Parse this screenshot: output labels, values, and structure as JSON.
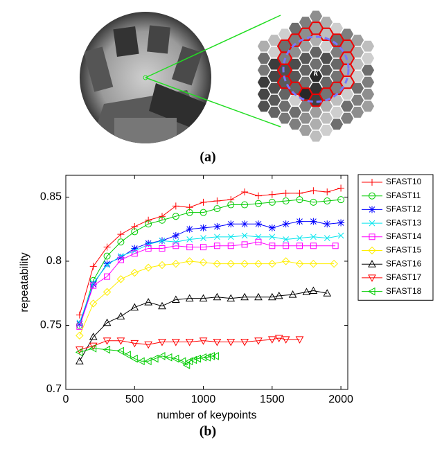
{
  "figure": {
    "label_a": "(a)",
    "label_b": "(b)",
    "hex_center_label": "k"
  },
  "chart_data": {
    "type": "line",
    "x_label": "number of keypoints",
    "y_label": "repeatability",
    "xlim": [
      0,
      2050
    ],
    "ylim": [
      0.7,
      0.867
    ],
    "xticks": [
      0,
      500,
      1000,
      1500,
      2000
    ],
    "yticks": [
      0.7,
      0.75,
      0.8,
      0.85
    ],
    "series": [
      {
        "name": "SFAST10",
        "color": "#ff0000",
        "marker": "+",
        "x": [
          100,
          200,
          300,
          400,
          500,
          600,
          700,
          800,
          900,
          1000,
          1100,
          1200,
          1300,
          1400,
          1500,
          1600,
          1700,
          1800,
          1900,
          2000
        ],
        "values": [
          0.758,
          0.796,
          0.811,
          0.821,
          0.827,
          0.832,
          0.835,
          0.843,
          0.842,
          0.846,
          0.847,
          0.848,
          0.854,
          0.851,
          0.852,
          0.853,
          0.853,
          0.855,
          0.854,
          0.857
        ]
      },
      {
        "name": "SFAST11",
        "color": "#00cc00",
        "marker": "o",
        "x": [
          100,
          200,
          300,
          400,
          500,
          600,
          700,
          800,
          900,
          1000,
          1100,
          1200,
          1300,
          1400,
          1500,
          1600,
          1700,
          1800,
          1900,
          2000
        ],
        "values": [
          0.75,
          0.785,
          0.804,
          0.815,
          0.823,
          0.829,
          0.832,
          0.835,
          0.838,
          0.838,
          0.841,
          0.844,
          0.844,
          0.845,
          0.846,
          0.847,
          0.848,
          0.846,
          0.847,
          0.848
        ]
      },
      {
        "name": "SFAST12",
        "color": "#0000ff",
        "marker": "*",
        "x": [
          100,
          200,
          300,
          400,
          500,
          600,
          700,
          800,
          900,
          1000,
          1100,
          1200,
          1300,
          1400,
          1500,
          1600,
          1700,
          1800,
          1900,
          2000
        ],
        "values": [
          0.751,
          0.782,
          0.798,
          0.803,
          0.81,
          0.814,
          0.816,
          0.82,
          0.825,
          0.826,
          0.827,
          0.829,
          0.829,
          0.829,
          0.826,
          0.829,
          0.831,
          0.831,
          0.829,
          0.83
        ]
      },
      {
        "name": "SFAST13",
        "color": "#00e5ee",
        "marker": "x",
        "x": [
          100,
          200,
          300,
          400,
          500,
          600,
          700,
          800,
          900,
          1000,
          1100,
          1200,
          1300,
          1400,
          1500,
          1600,
          1700,
          1800,
          1900,
          2000
        ],
        "values": [
          0.752,
          0.783,
          0.797,
          0.804,
          0.808,
          0.813,
          0.816,
          0.815,
          0.817,
          0.818,
          0.819,
          0.819,
          0.82,
          0.819,
          0.819,
          0.817,
          0.818,
          0.819,
          0.818,
          0.82
        ]
      },
      {
        "name": "SFAST14",
        "color": "#ff00ff",
        "marker": "s",
        "x": [
          100,
          200,
          300,
          400,
          500,
          600,
          700,
          800,
          900,
          1000,
          1100,
          1200,
          1300,
          1400,
          1500,
          1600,
          1700,
          1800,
          1960
        ],
        "values": [
          0.749,
          0.781,
          0.788,
          0.801,
          0.806,
          0.81,
          0.81,
          0.812,
          0.811,
          0.811,
          0.812,
          0.812,
          0.813,
          0.815,
          0.812,
          0.812,
          0.812,
          0.812,
          0.812
        ]
      },
      {
        "name": "SFAST15",
        "color": "#ffee00",
        "marker": "d",
        "x": [
          100,
          200,
          300,
          400,
          500,
          600,
          700,
          800,
          900,
          1000,
          1100,
          1200,
          1300,
          1400,
          1500,
          1600,
          1700,
          1800,
          1950
        ],
        "values": [
          0.742,
          0.767,
          0.776,
          0.786,
          0.791,
          0.795,
          0.797,
          0.798,
          0.8,
          0.799,
          0.798,
          0.798,
          0.798,
          0.798,
          0.798,
          0.8,
          0.798,
          0.798,
          0.798
        ]
      },
      {
        "name": "SFAST16",
        "color": "#000000",
        "marker": "^",
        "x": [
          100,
          200,
          300,
          400,
          500,
          600,
          700,
          800,
          900,
          1000,
          1100,
          1200,
          1300,
          1400,
          1500,
          1550,
          1650,
          1750,
          1800,
          1900
        ],
        "values": [
          0.722,
          0.741,
          0.752,
          0.757,
          0.764,
          0.768,
          0.765,
          0.77,
          0.771,
          0.771,
          0.772,
          0.771,
          0.772,
          0.772,
          0.772,
          0.773,
          0.774,
          0.776,
          0.777,
          0.775
        ]
      },
      {
        "name": "SFAST17",
        "color": "#ff0000",
        "marker": "v",
        "x": [
          100,
          200,
          300,
          400,
          500,
          600,
          700,
          800,
          900,
          1000,
          1100,
          1200,
          1300,
          1400,
          1500,
          1550,
          1600,
          1700
        ],
        "values": [
          0.731,
          0.734,
          0.738,
          0.738,
          0.736,
          0.735,
          0.737,
          0.737,
          0.737,
          0.738,
          0.737,
          0.737,
          0.737,
          0.738,
          0.739,
          0.74,
          0.739,
          0.739
        ]
      },
      {
        "name": "SFAST18",
        "color": "#00cc00",
        "marker": "<",
        "x": [
          100,
          200,
          300,
          400,
          450,
          500,
          550,
          600,
          650,
          700,
          750,
          800,
          850,
          880,
          900,
          930,
          960,
          1000,
          1030,
          1060,
          1090
        ],
        "values": [
          0.729,
          0.732,
          0.731,
          0.73,
          0.727,
          0.724,
          0.722,
          0.722,
          0.724,
          0.726,
          0.725,
          0.724,
          0.722,
          0.719,
          0.722,
          0.723,
          0.724,
          0.725,
          0.725,
          0.726,
          0.726
        ]
      }
    ]
  }
}
